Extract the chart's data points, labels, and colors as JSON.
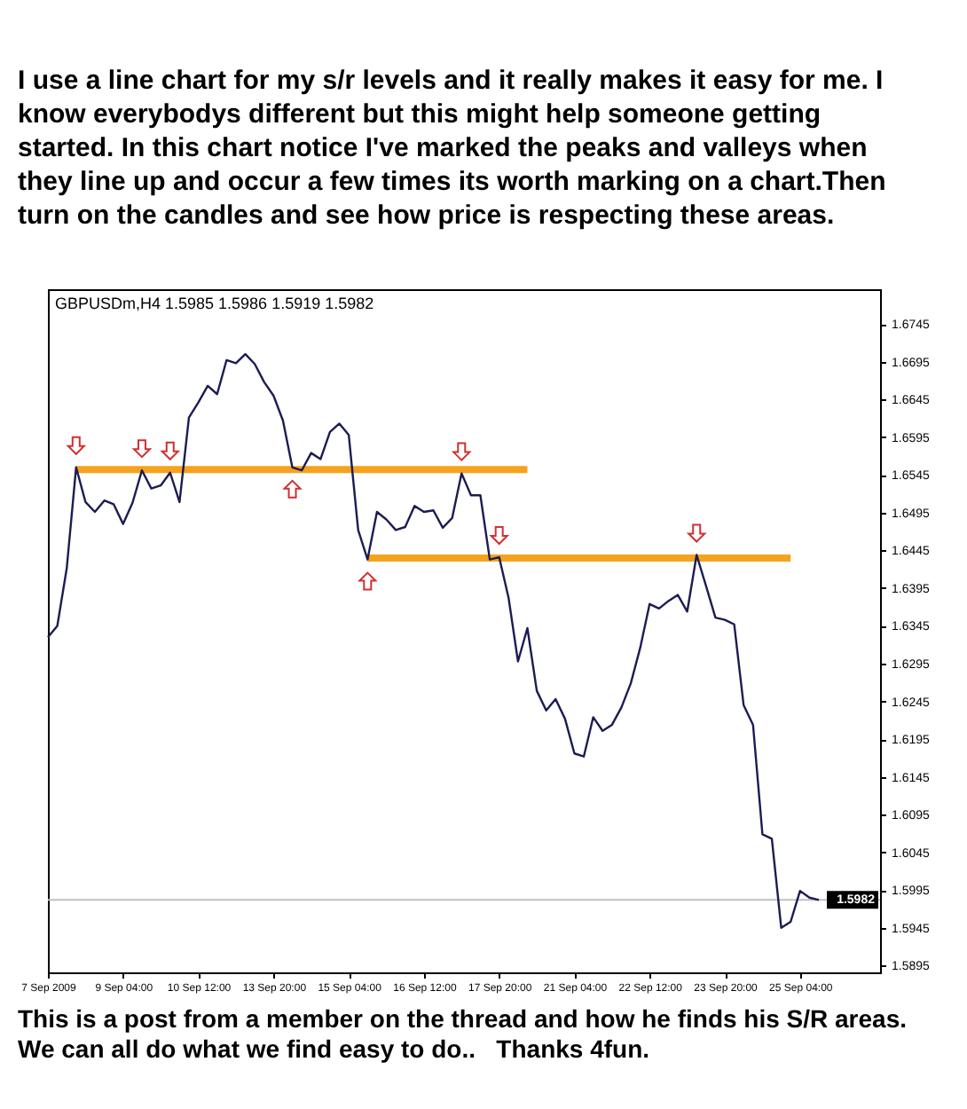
{
  "chart_data": {
    "type": "line",
    "title": "I use a line chart for my s/r levels and it really makes it easy for me. I know everybodys different but this might help someone getting started. In this chart notice I've marked the peaks and valleys when they line up and occur a few times its worth marking on a chart.Then turn on the candles and see how price is respecting these areas.",
    "annotations": [
      "GBPUSDm,H4  1.5985 1.5986 1.5919 1.5982",
      "This is a post from a member on the thread and how he finds his S/R areas.",
      "We can all do what we find easy to do..   Thanks 4fun."
    ],
    "categories": [
      "7 Sep 2009",
      null,
      null,
      null,
      null,
      null,
      null,
      null,
      "9 Sep 04:00",
      null,
      null,
      null,
      null,
      null,
      null,
      null,
      "10 Sep 12:00",
      null,
      null,
      null,
      null,
      null,
      null,
      null,
      "13 Sep 20:00",
      null,
      null,
      null,
      null,
      null,
      null,
      null,
      "15 Sep 04:00",
      null,
      null,
      null,
      null,
      null,
      null,
      null,
      "16 Sep 12:00",
      null,
      null,
      null,
      null,
      null,
      null,
      null,
      "17 Sep 20:00",
      null,
      null,
      null,
      null,
      null,
      null,
      null,
      "21 Sep 04:00",
      null,
      null,
      null,
      null,
      null,
      null,
      null,
      "22 Sep 12:00",
      null,
      null,
      null,
      null,
      null,
      null,
      null,
      "23 Sep 20:00",
      null,
      null,
      null,
      null,
      null,
      null,
      null,
      "25 Sep 04:00",
      null,
      null
    ],
    "series": [
      {
        "color": "#1c1c54",
        "values": [
          1.633,
          1.6345,
          1.6421,
          1.6555,
          1.6509,
          1.6496,
          1.6511,
          1.6506,
          1.648,
          1.6508,
          1.6551,
          1.6527,
          1.6531,
          1.6548,
          1.6509,
          1.6621,
          1.6641,
          1.6663,
          1.6652,
          1.6697,
          1.6693,
          1.6705,
          1.6692,
          1.6668,
          1.665,
          1.6617,
          1.6555,
          1.6551,
          1.6574,
          1.6566,
          1.6602,
          1.6613,
          1.6598,
          1.6472,
          1.6433,
          1.6496,
          1.6486,
          1.6472,
          1.6476,
          1.6504,
          1.6496,
          1.6498,
          1.6475,
          1.6488,
          1.6547,
          1.6518,
          1.6518,
          1.6433,
          1.6436,
          1.6382,
          1.6298,
          1.6342,
          1.6259,
          1.6233,
          1.6248,
          1.6222,
          1.6176,
          1.6172,
          1.6224,
          1.6206,
          1.6214,
          1.6237,
          1.6269,
          1.6316,
          1.6374,
          1.6368,
          1.6378,
          1.6386,
          1.6364,
          1.6439,
          1.6398,
          1.6356,
          1.6353,
          1.6347,
          1.624,
          1.6214,
          1.6069,
          1.6063,
          1.5945,
          1.5953,
          1.5994,
          1.5985,
          1.5982
        ]
      },
      {
        "color": "#f5a31c",
        "values": [
          null,
          null,
          null,
          1.6552,
          1.6552,
          1.6552,
          1.6552,
          1.6552,
          1.6552,
          1.6552,
          1.6552,
          1.6552,
          1.6552,
          1.6552,
          1.6552,
          1.6552,
          1.6552,
          1.6552,
          1.6552,
          1.6552,
          1.6552,
          1.6552,
          1.6552,
          1.6552,
          1.6552,
          1.6552,
          1.6552,
          1.6552,
          1.6552,
          1.6552,
          1.6552,
          1.6552,
          1.6552,
          1.6552,
          1.6552,
          1.6552,
          1.6552,
          1.6552,
          1.6552,
          1.6552,
          1.6552,
          1.6552,
          1.6552,
          1.6552,
          1.6552,
          1.6552,
          1.6552,
          1.6552,
          1.6552,
          1.6552,
          1.6552,
          1.6552,
          null,
          null,
          null,
          null,
          null,
          null,
          null,
          null,
          null,
          null,
          null,
          null,
          null,
          null,
          null,
          null,
          null,
          null,
          null,
          null,
          null,
          null,
          null,
          null,
          null,
          null,
          null,
          null,
          null,
          null,
          null
        ]
      },
      {
        "color": "#f5a31c",
        "values": [
          null,
          null,
          null,
          null,
          null,
          null,
          null,
          null,
          null,
          null,
          null,
          null,
          null,
          null,
          null,
          null,
          null,
          null,
          null,
          null,
          null,
          null,
          null,
          null,
          null,
          null,
          null,
          null,
          null,
          null,
          null,
          null,
          null,
          null,
          1.6435,
          1.6435,
          1.6435,
          1.6435,
          1.6435,
          1.6435,
          1.6435,
          1.6435,
          1.6435,
          1.6435,
          1.6435,
          1.6435,
          1.6435,
          1.6435,
          1.6435,
          1.6435,
          1.6435,
          1.6435,
          1.6435,
          1.6435,
          1.6435,
          1.6435,
          1.6435,
          1.6435,
          1.6435,
          1.6435,
          1.6435,
          1.6435,
          1.6435,
          1.6435,
          1.6435,
          1.6435,
          1.6435,
          1.6435,
          1.6435,
          1.6435,
          1.6435,
          1.6435,
          1.6435,
          1.6435,
          1.6435,
          1.6435,
          1.6435,
          1.6435,
          1.6435,
          1.6435,
          null,
          null,
          null
        ]
      }
    ],
    "ylim": [
      1.5886,
      1.6791
    ],
    "yticks": [
      1.5895,
      1.5945,
      1.5995,
      1.6045,
      1.6095,
      1.6145,
      1.6195,
      1.6245,
      1.6295,
      1.6345,
      1.6395,
      1.6445,
      1.6495,
      1.6545,
      1.6595,
      1.6645,
      1.6695,
      1.6745
    ],
    "ref_lines": [
      {
        "axis": "y",
        "value": 1.5982,
        "label": "1.5982",
        "color": "#c0c0c0"
      }
    ],
    "marker": "none",
    "line_style": "solid",
    "legend": false,
    "grid": false
  }
}
